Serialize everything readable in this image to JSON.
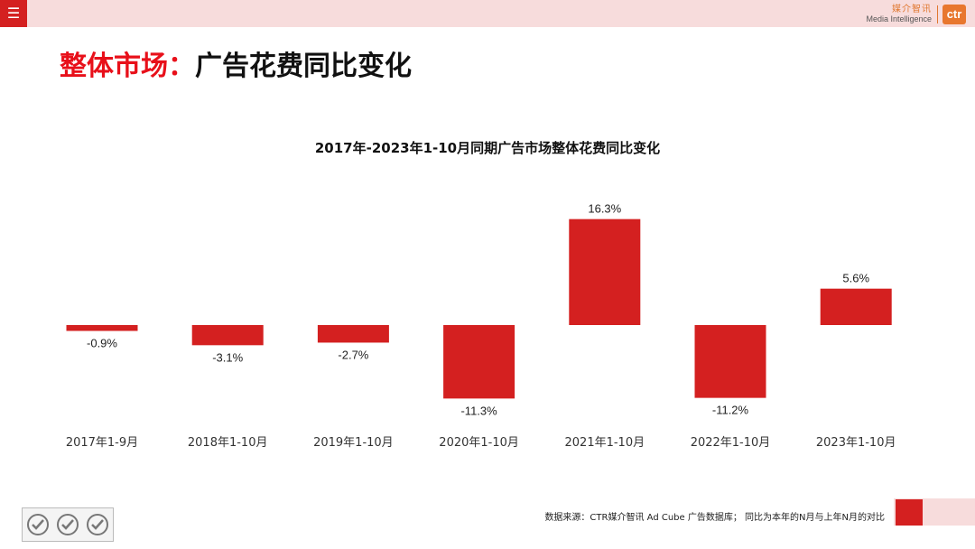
{
  "header": {
    "menu_icon": "menu-icon",
    "logo_cn": "媒介智讯",
    "logo_en": "Media Intelligence",
    "logo_mark": "ctr"
  },
  "page": {
    "title_red": "整体市场：",
    "title_black": "广告花费同比变化"
  },
  "colors": {
    "accent": "#d42020",
    "bar": "#d42020",
    "title_red": "#e8101a",
    "band": "#f7dcdc"
  },
  "chart_data": {
    "type": "bar",
    "title": "2017年-2023年1-10月同期广告市场整体花费同比变化",
    "categories": [
      "2017年1-9月",
      "2018年1-10月",
      "2019年1-10月",
      "2020年1-10月",
      "2021年1-10月",
      "2022年1-10月",
      "2023年1-10月"
    ],
    "values": [
      -0.9,
      -3.1,
      -2.7,
      -11.3,
      16.3,
      -11.2,
      5.6
    ],
    "value_labels": [
      "-0.9%",
      "-3.1%",
      "-2.7%",
      "-11.3%",
      "16.3%",
      "-11.2%",
      "5.6%"
    ],
    "ylim": [
      -11.3,
      16.3
    ],
    "xlabel": "",
    "ylabel": "",
    "grid": false,
    "legend": "none"
  },
  "footer": {
    "note": "数据来源：CTR媒介智讯 Ad Cube 广告数据库； 同比为本年的N月与上年N月的对比",
    "cert_icons": [
      "sgs-cert-icon",
      "sgs-cert-icon",
      "sgs-cert-icon"
    ]
  }
}
